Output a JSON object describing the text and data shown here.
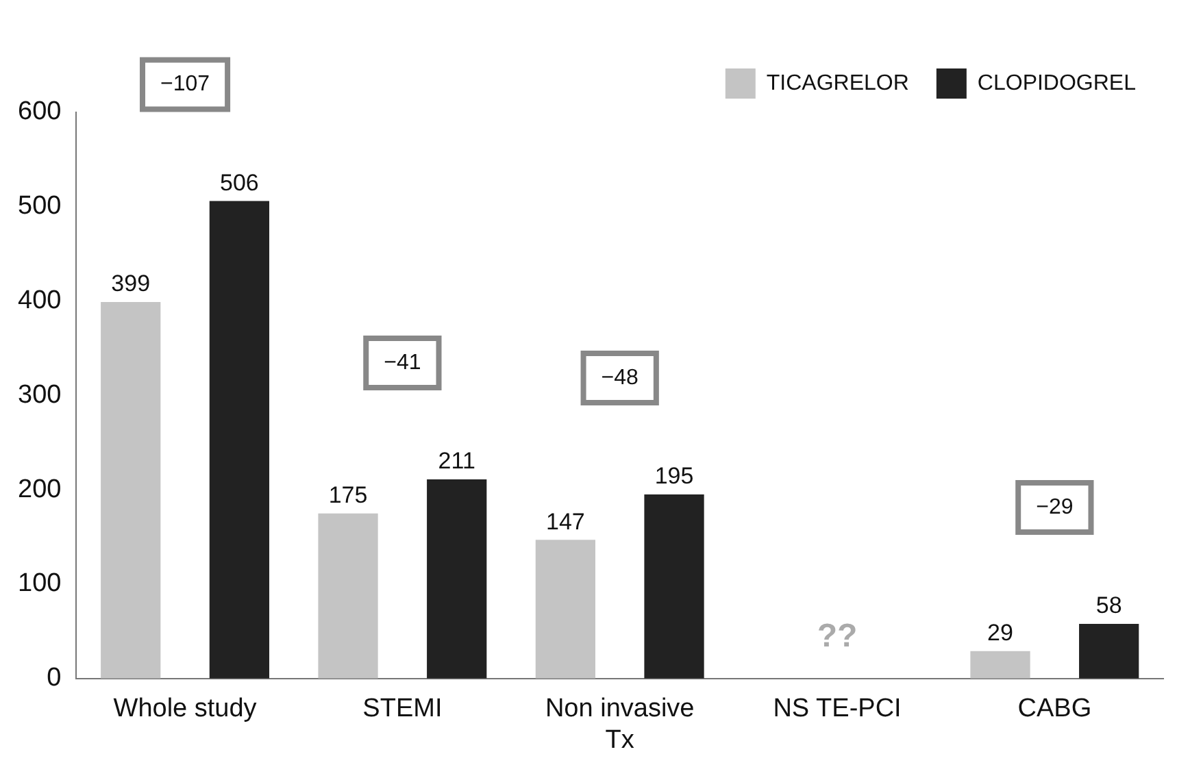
{
  "chart_data": {
    "type": "bar",
    "categories": [
      "Whole study",
      "STEMI",
      "Non invasive Tx",
      "NS TE-PCI",
      "CABG"
    ],
    "series": [
      {
        "name": "TICAGRELOR",
        "color": "#c4c4c4",
        "values": [
          399,
          175,
          147,
          null,
          29
        ]
      },
      {
        "name": "CLOPIDOGREL",
        "color": "#222222",
        "values": [
          506,
          211,
          195,
          null,
          58
        ]
      }
    ],
    "ylim": [
      0,
      600
    ],
    "yticks": [
      0,
      100,
      200,
      300,
      400,
      500,
      600
    ],
    "grid": false,
    "legend": "top right",
    "data_labels": true,
    "annotations": [
      "−107",
      "−41",
      "−48",
      "??",
      "−29"
    ]
  }
}
